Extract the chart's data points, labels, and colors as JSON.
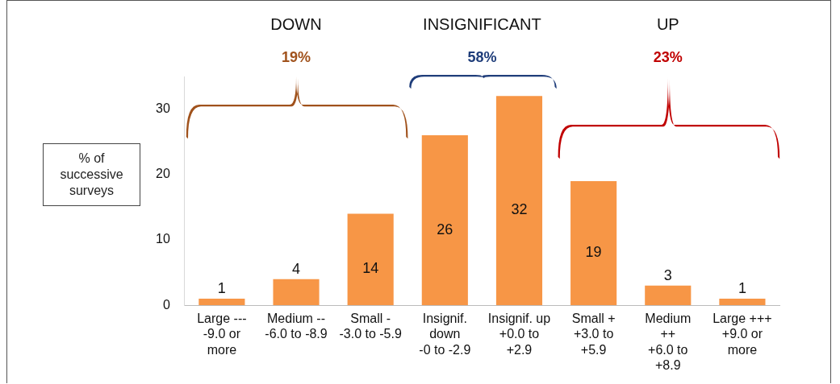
{
  "chart_data": {
    "type": "bar",
    "ylabel": "% of successive surveys",
    "categories": [
      "Large ---\n-9.0 or\nmore",
      "Medium --\n-6.0 to -8.9",
      "Small -\n-3.0 to -5.9",
      "Insignif.\ndown\n-0 to -2.9",
      "Insignif. up\n+0.0 to\n+2.9",
      "Small +\n+3.0 to\n+5.9",
      "Medium\n++\n+6.0 to\n+8.9",
      "Large +++\n+9.0 or\nmore"
    ],
    "values": [
      1,
      4,
      14,
      26,
      32,
      19,
      3,
      1
    ],
    "color": "#f79646",
    "ylim": [
      0,
      35
    ],
    "yticks": [
      0,
      10,
      20,
      30
    ],
    "grid": false,
    "legend": false,
    "data_labels": true,
    "annotations": [
      "DOWN",
      "INSIGNIFICANT",
      "UP",
      "19%",
      "58%",
      "23%"
    ]
  }
}
